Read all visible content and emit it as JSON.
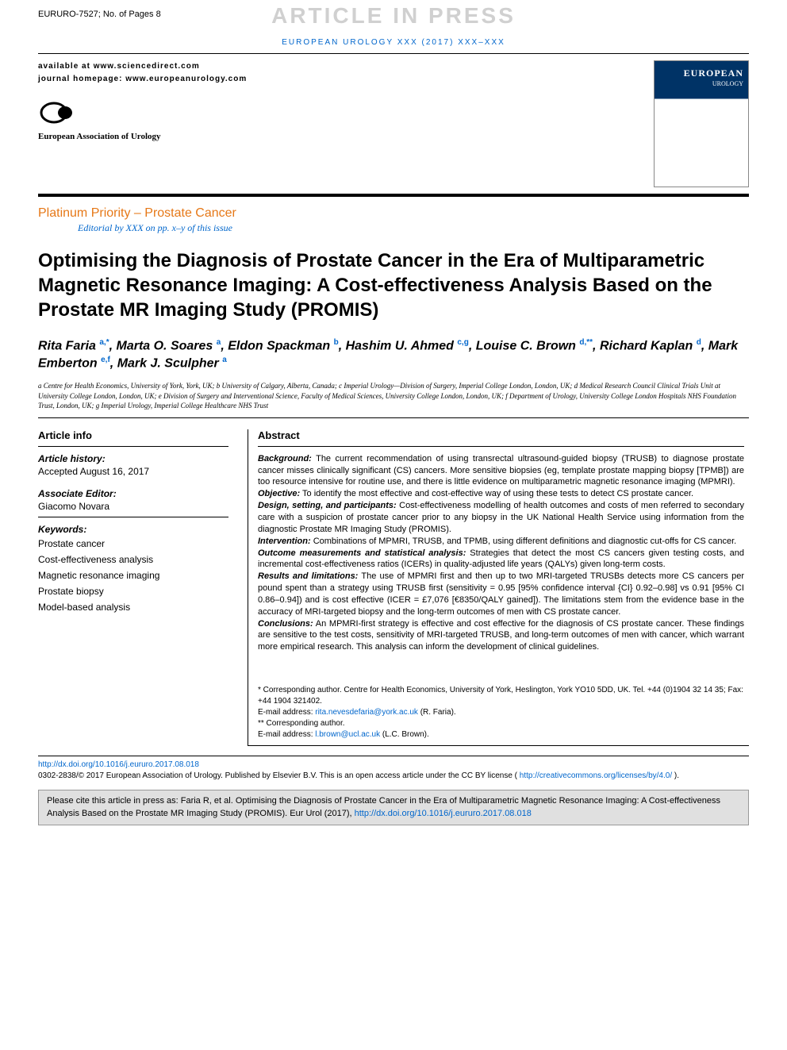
{
  "header": {
    "doc_id": "EURURO-7527; No. of Pages 8",
    "watermark": "ARTICLE IN PRESS",
    "journal_ref": "EUROPEAN UROLOGY XXX (2017) XXX–XXX",
    "available": "available at www.sciencedirect.com",
    "homepage": "journal homepage: www.europeanurology.com",
    "assoc_name": "European Association of Urology",
    "cover_title": "EUROPEAN",
    "cover_sub": "UROLOGY"
  },
  "section": {
    "label": "Platinum Priority – Prostate Cancer",
    "editorial": "Editorial by XXX on pp. x–y of this issue"
  },
  "title": "Optimising the Diagnosis of Prostate Cancer in the Era of Multiparametric Magnetic Resonance Imaging: A Cost-effectiveness Analysis Based on the Prostate MR Imaging Study (PROMIS)",
  "authors_html": "Rita Faria <sup>a,*</sup>, Marta O. Soares <sup>a</sup>, Eldon Spackman <sup>b</sup>, Hashim U. Ahmed <sup>c,g</sup>, Louise C. Brown <sup>d,**</sup>, Richard Kaplan <sup>d</sup>, Mark Emberton <sup>e,f</sup>, Mark J. Sculpher <sup>a</sup>",
  "affiliations": "a Centre for Health Economics, University of York, York, UK; b University of Calgary, Alberta, Canada; c Imperial Urology—Division of Surgery, Imperial College London, London, UK; d Medical Research Council Clinical Trials Unit at University College London, London, UK; e Division of Surgery and Interventional Science, Faculty of Medical Sciences, University College London, London, UK; f Department of Urology, University College London Hospitals NHS Foundation Trust, London, UK; g Imperial Urology, Imperial College Healthcare NHS Trust",
  "info": {
    "heading": "Article info",
    "history_label": "Article history:",
    "history_text": "Accepted August 16, 2017",
    "editor_label": "Associate Editor:",
    "editor_text": "Giacomo Novara",
    "keywords_label": "Keywords:",
    "keywords": [
      "Prostate cancer",
      "Cost-effectiveness analysis",
      "Magnetic resonance imaging",
      "Prostate biopsy",
      "Model-based analysis"
    ]
  },
  "abstract": {
    "heading": "Abstract",
    "background_label": "Background:",
    "background": "The current recommendation of using transrectal ultrasound-guided biopsy (TRUSB) to diagnose prostate cancer misses clinically significant (CS) cancers. More sensitive biopsies (eg, template prostate mapping biopsy [TPMB]) are too resource intensive for routine use, and there is little evidence on multiparametric magnetic resonance imaging (MPMRI).",
    "objective_label": "Objective:",
    "objective": "To identify the most effective and cost-effective way of using these tests to detect CS prostate cancer.",
    "design_label": "Design, setting, and participants:",
    "design": "Cost-effectiveness modelling of health outcomes and costs of men referred to secondary care with a suspicion of prostate cancer prior to any biopsy in the UK National Health Service using information from the diagnostic Prostate MR Imaging Study (PROMIS).",
    "intervention_label": "Intervention:",
    "intervention": "Combinations of MPMRI, TRUSB, and TPMB, using different definitions and diagnostic cut-offs for CS cancer.",
    "outcome_label": "Outcome measurements and statistical analysis:",
    "outcome": "Strategies that detect the most CS cancers given testing costs, and incremental cost-effectiveness ratios (ICERs) in quality-adjusted life years (QALYs) given long-term costs.",
    "results_label": "Results and limitations:",
    "results": "The use of MPMRI first and then up to two MRI-targeted TRUSBs detects more CS cancers per pound spent than a strategy using TRUSB first (sensitivity = 0.95 [95% confidence interval {CI} 0.92–0.98] vs 0.91 [95% CI 0.86–0.94]) and is cost effective (ICER = £7,076 [€8350/QALY gained]). The limitations stem from the evidence base in the accuracy of MRI-targeted biopsy and the long-term outcomes of men with CS prostate cancer.",
    "conclusions_label": "Conclusions:",
    "conclusions": "An MPMRI-first strategy is effective and cost effective for the diagnosis of CS prostate cancer. These findings are sensitive to the test costs, sensitivity of MRI-targeted TRUSB, and long-term outcomes of men with cancer, which warrant more empirical research. This analysis can inform the development of clinical guidelines."
  },
  "corr": {
    "line1": "* Corresponding author. Centre for Health Economics, University of York, Heslington, York YO10 5DD, UK. Tel. +44 (0)1904 32 14 35; Fax: +44 1904 321402.",
    "line2_pre": "E-mail address: ",
    "email1": "rita.nevesdefaria@york.ac.uk",
    "line2_post": " (R. Faria).",
    "line3": "** Corresponding author.",
    "line4_pre": "E-mail address: ",
    "email2": "l.brown@ucl.ac.uk",
    "line4_post": " (L.C. Brown)."
  },
  "footer": {
    "doi": "http://dx.doi.org/10.1016/j.eururo.2017.08.018",
    "copyright_pre": "0302-2838/© 2017 European Association of Urology. Published by Elsevier B.V. This is an open access article under the CC BY license (",
    "cc_link": "http://creativecommons.org/licenses/by/4.0/",
    "copyright_post": ")."
  },
  "cite": {
    "text_pre": "Please cite this article in press as: Faria R, et al. Optimising the Diagnosis of Prostate Cancer in the Era of Multiparametric Magnetic Resonance Imaging: A Cost-effectiveness Analysis Based on the Prostate MR Imaging Study (PROMIS). Eur Urol (2017), ",
    "link": "http://dx.doi.org/10.1016/j.eururo.2017.08.018"
  }
}
